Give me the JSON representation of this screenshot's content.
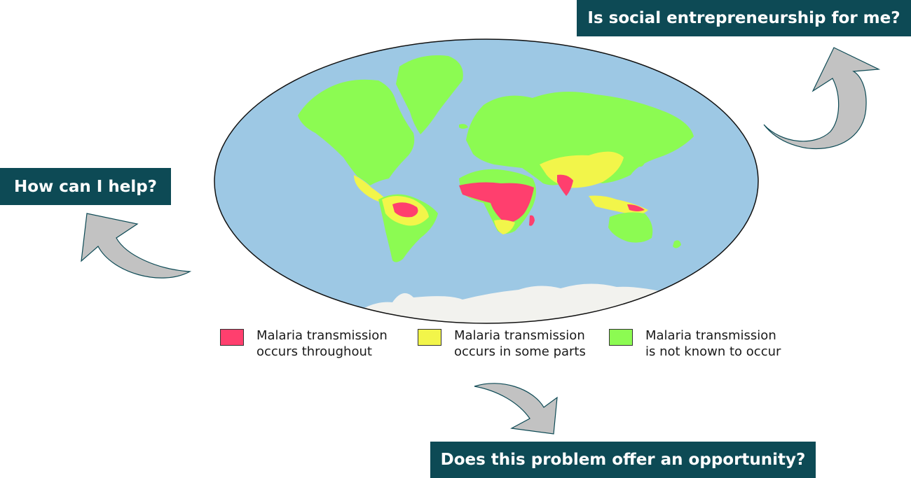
{
  "questions": {
    "social": "Is social entrepreneurship for me?",
    "help": "How can I help?",
    "opportunity": "Does this problem offer an opportunity?"
  },
  "legend": [
    {
      "line1": "Malaria transmission",
      "line2": "occurs throughout",
      "color": "#ff3f6e"
    },
    {
      "line1": "Malaria transmission",
      "line2": "occurs in some parts",
      "color": "#f2f54a"
    },
    {
      "line1": "Malaria transmission",
      "line2": "is not known to occur",
      "color": "#8cfb52"
    }
  ],
  "colors": {
    "ocean": "#9dc8e4",
    "ice": "#f2f2ee",
    "box_background": "#0d4a55",
    "arrow_fill": "#c2c2c2",
    "arrow_stroke": "#0d4a55"
  },
  "icons": [
    "curved-arrow-up-right-icon",
    "curved-arrow-up-left-icon",
    "curved-arrow-down-right-icon"
  ]
}
